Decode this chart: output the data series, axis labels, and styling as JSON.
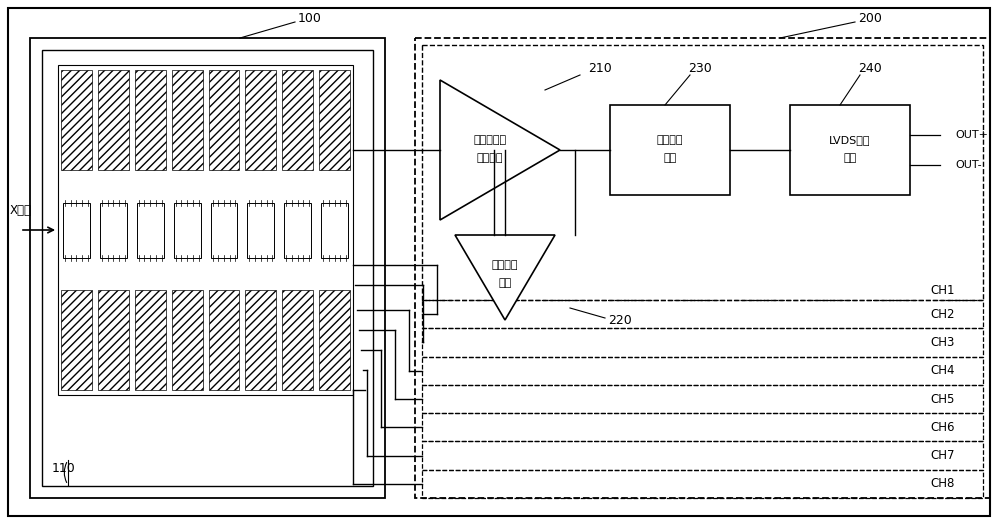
{
  "bg_color": "#ffffff",
  "line_color": "#000000",
  "label_100": "100",
  "label_200": "200",
  "label_110": "110",
  "label_210": "210",
  "label_220": "220",
  "label_230": "230",
  "label_240": "240",
  "text_xray": "X射线",
  "text_amp_line1": "电流转电压",
  "text_amp_line2": "放大模块",
  "text_baseline_line1": "基线恢复",
  "text_baseline_line2": "模块",
  "text_discrim_line1": "高速甄别",
  "text_discrim_line2": "模块",
  "text_lvds_line1": "LVDS输出",
  "text_lvds_line2": "模块",
  "text_out_plus": "OUT+",
  "text_out_minus": "OUT-",
  "channels": [
    "CH1",
    "CH2",
    "CH3",
    "CH4",
    "CH5",
    "CH6",
    "CH7",
    "CH8"
  ],
  "figsize": [
    10.0,
    5.26
  ],
  "dpi": 100
}
